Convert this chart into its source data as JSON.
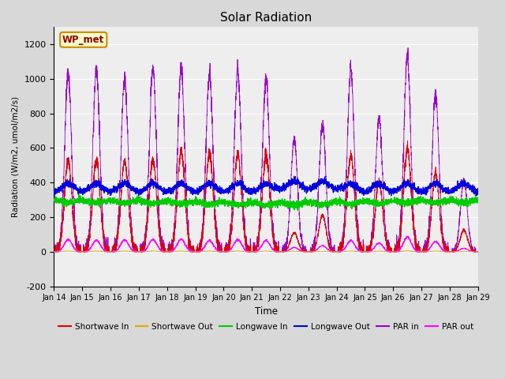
{
  "title": "Solar Radiation",
  "xlabel": "Time",
  "ylabel": "Radiation (W/m2, umol/m2/s)",
  "ylim": [
    -200,
    1300
  ],
  "xlim": [
    0,
    15
  ],
  "yticks": [
    -200,
    0,
    200,
    400,
    600,
    800,
    1000,
    1200
  ],
  "xtick_labels": [
    "Jan 14",
    "Jan 15",
    "Jan 16",
    "Jan 17",
    "Jan 18",
    "Jan 19",
    "Jan 20",
    "Jan 21",
    "Jan 22",
    "Jan 23",
    "Jan 24",
    "Jan 25",
    "Jan 26",
    "Jan 27",
    "Jan 28",
    "Jan 29"
  ],
  "station_label": "WP_met",
  "colors": {
    "shortwave_in": "#dd0000",
    "shortwave_out": "#ddaa00",
    "longwave_in": "#00cc00",
    "longwave_out": "#0000dd",
    "par_in": "#9900cc",
    "par_out": "#ff00ff"
  },
  "background_color": "#d8d8d8",
  "plot_bg_color": "#eeeeee",
  "grid_color": "#ffffff",
  "par_in_peaks": [
    1030,
    1050,
    1005,
    1055,
    1060,
    1025,
    1040,
    1000,
    650,
    730,
    1050,
    770,
    1125,
    905,
    415
  ],
  "sw_in_peaks": [
    530,
    530,
    525,
    530,
    580,
    570,
    560,
    555,
    110,
    210,
    555,
    405,
    600,
    455,
    125
  ],
  "par_out_peaks": [
    70,
    65,
    68,
    70,
    72,
    65,
    70,
    65,
    25,
    35,
    65,
    50,
    85,
    60,
    20
  ],
  "sw_out_peaks": [
    4,
    4,
    4,
    4,
    4,
    4,
    4,
    4,
    1,
    2,
    4,
    3,
    5,
    4,
    1
  ],
  "n_days": 15,
  "pts_per_day": 288,
  "lw_in_base": 305,
  "lw_out_base": 340,
  "figsize": [
    6.4,
    4.8
  ],
  "dpi": 100
}
